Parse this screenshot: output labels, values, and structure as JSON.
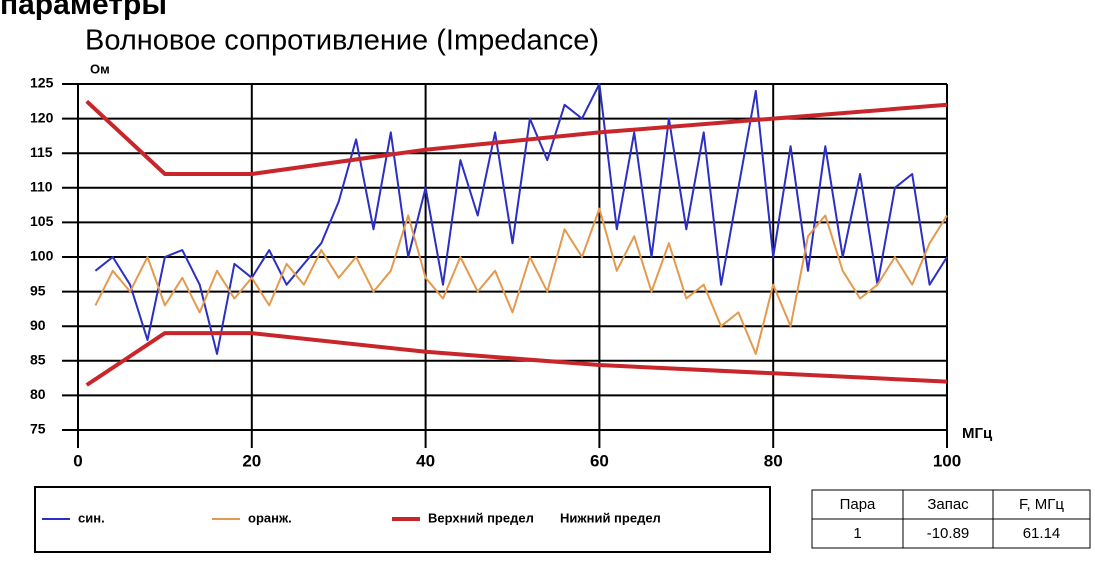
{
  "heading": "параметры",
  "chart_data": {
    "type": "line",
    "title": "Волновое сопротивление (Impedance)",
    "y_label": "Ом",
    "x_label": "МГц",
    "xlim": [
      0,
      100
    ],
    "xticks": [
      0,
      20,
      40,
      60,
      80,
      100
    ],
    "ylim": [
      75,
      125
    ],
    "yticks": [
      125,
      120,
      115,
      110,
      105,
      100,
      95,
      90,
      85,
      80,
      75
    ],
    "grid": true,
    "series": [
      {
        "name": "син.",
        "color": "#2b2fc4",
        "x": [
          2,
          4,
          6,
          8,
          10,
          12,
          14,
          16,
          18,
          20,
          22,
          24,
          26,
          28,
          30,
          32,
          34,
          36,
          38,
          40,
          42,
          44,
          46,
          48,
          50,
          52,
          54,
          56,
          58,
          60,
          62,
          64,
          66,
          68,
          70,
          72,
          74,
          76,
          78,
          80,
          82,
          84,
          86,
          88,
          90,
          92,
          94,
          96,
          98,
          100
        ],
        "values": [
          98,
          100,
          96,
          88,
          100,
          101,
          96,
          86,
          99,
          97,
          101,
          96,
          99,
          102,
          108,
          117,
          104,
          118,
          100,
          110,
          96,
          114,
          106,
          118,
          102,
          120,
          114,
          122,
          120,
          125,
          104,
          118,
          100,
          120,
          104,
          118,
          96,
          110,
          124,
          100,
          116,
          98,
          116,
          100,
          112,
          96,
          110,
          112,
          96,
          100
        ]
      },
      {
        "name": "оранж.",
        "color": "#e39a4f",
        "x": [
          2,
          4,
          6,
          8,
          10,
          12,
          14,
          16,
          18,
          20,
          22,
          24,
          26,
          28,
          30,
          32,
          34,
          36,
          38,
          40,
          42,
          44,
          46,
          48,
          50,
          52,
          54,
          56,
          58,
          60,
          62,
          64,
          66,
          68,
          70,
          72,
          74,
          76,
          78,
          80,
          82,
          84,
          86,
          88,
          90,
          92,
          94,
          96,
          98,
          100
        ],
        "values": [
          93,
          98,
          95,
          100,
          93,
          97,
          92,
          98,
          94,
          97,
          93,
          99,
          96,
          101,
          97,
          100,
          95,
          98,
          106,
          97,
          94,
          100,
          95,
          98,
          92,
          100,
          95,
          104,
          100,
          107,
          98,
          103,
          95,
          102,
          94,
          96,
          90,
          92,
          86,
          96,
          90,
          103,
          106,
          98,
          94,
          96,
          100,
          96,
          102,
          106
        ]
      },
      {
        "name": "Верхний предел",
        "color": "#c8262a",
        "x": [
          1,
          10,
          20,
          40,
          60,
          80,
          100
        ],
        "values": [
          122.5,
          112,
          112,
          115.5,
          118,
          120,
          122
        ]
      },
      {
        "name": "Нижний предел",
        "color": "#c8262a",
        "x": [
          1,
          10,
          20,
          40,
          60,
          80,
          100
        ],
        "values": [
          81.5,
          89,
          89,
          86.3,
          84.4,
          83.2,
          82
        ]
      }
    ]
  },
  "table": {
    "header": [
      "Пара",
      "Запас",
      "F, МГц"
    ],
    "rows": [
      [
        "1",
        "-10.89",
        "61.14"
      ]
    ]
  }
}
